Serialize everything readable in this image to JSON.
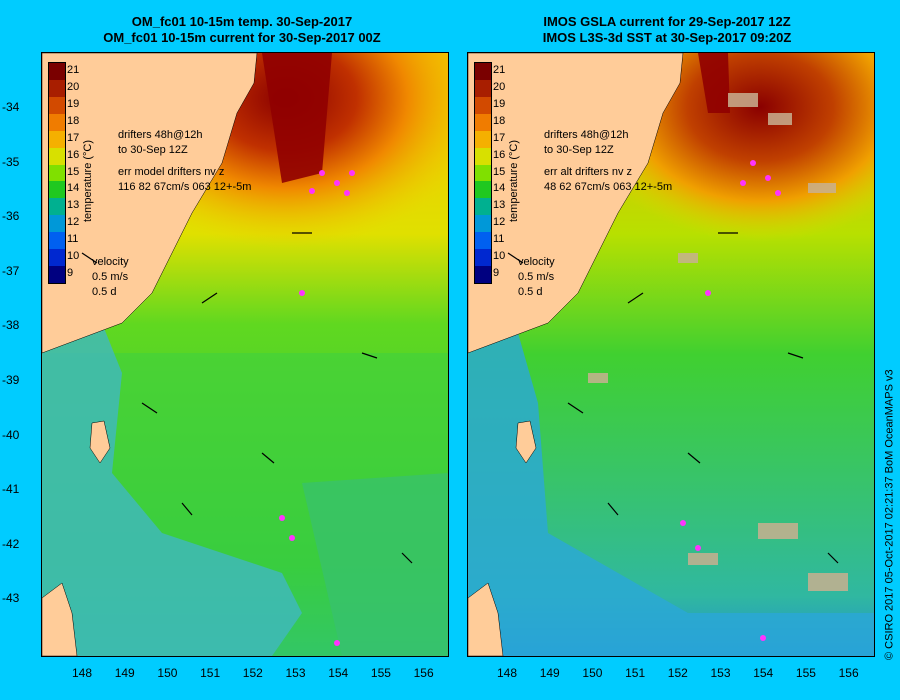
{
  "left_panel": {
    "title_line1": "OM_fc01 10-15m temp. 30-Sep-2017",
    "title_line2": "OM_fc01 10-15m current for 30-Sep-2017 00Z",
    "drifters_line1": "drifters 48h@12h",
    "drifters_line2": "to 30-Sep 12Z",
    "err_line1": "err model drifters nv z",
    "err_line2": "116 82 67cm/s 063 12+-5m"
  },
  "right_panel": {
    "title_line1": "IMOS GSLA current for 29-Sep-2017 12Z",
    "title_line2": "IMOS L3S-3d SST at 30-Sep-2017 09:20Z",
    "drifters_line1": "drifters 48h@12h",
    "drifters_line2": "to 30-Sep 12Z",
    "err_line1": "err alt drifters nv z",
    "err_line2": "48 62 67cm/s 063 12+-5m"
  },
  "colorbar": {
    "label": "temperature (°C)",
    "ticks": [
      "21",
      "20",
      "19",
      "18",
      "17",
      "16",
      "15",
      "14",
      "13",
      "12",
      "11",
      "10",
      "9"
    ],
    "colors": [
      "#7a0000",
      "#a81e00",
      "#d24a00",
      "#f07c00",
      "#f5b000",
      "#d8e000",
      "#80e000",
      "#20c820",
      "#00b090",
      "#0098d8",
      "#0060f0",
      "#0028d0",
      "#000080"
    ]
  },
  "velocity": {
    "label": "velocity",
    "speed": "0.5 m/s",
    "days": "0.5 d"
  },
  "lat_labels": [
    "-34",
    "-35",
    "-36",
    "-37",
    "-38",
    "-39",
    "-40",
    "-41",
    "-42",
    "-43"
  ],
  "lon_labels": [
    "148",
    "149",
    "150",
    "151",
    "152",
    "153",
    "154",
    "155",
    "156"
  ],
  "copyright": "© CSIRO 2017   05-Oct-2017 02:21:37 BoM OceanMAPS v3",
  "colors": {
    "land": "#ffcc99",
    "background": "#00ccff",
    "drifter": "#ff33ff",
    "cloud": "#c8b090"
  }
}
